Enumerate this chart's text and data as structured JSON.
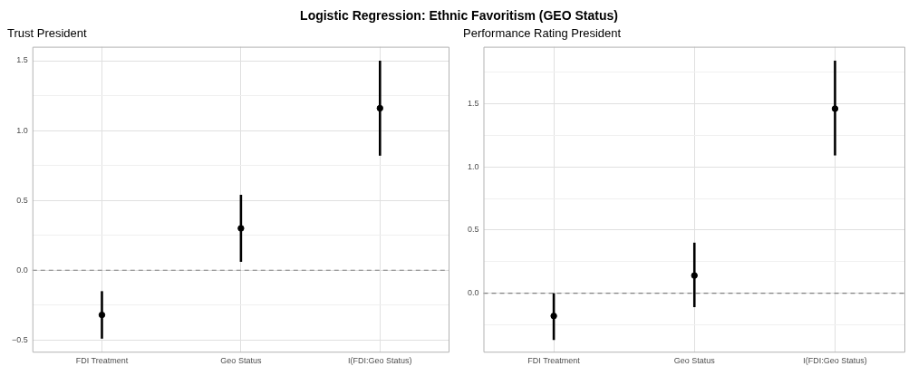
{
  "chart_data": [
    {
      "type": "scatter",
      "title": "Logistic Regression: Ethnic Favoritism (GEO Status)",
      "subtitle": "Trust President",
      "categories": [
        "FDI Treatment",
        "Geo Status",
        "I(FDI:Geo Status)"
      ],
      "series": [
        {
          "color": "#000000",
          "values": [
            -0.32,
            0.3,
            1.16
          ],
          "errors": [
            [
              -0.49,
              -0.15
            ],
            [
              0.06,
              0.54
            ],
            [
              0.82,
              1.5
            ]
          ]
        }
      ],
      "ylim": [
        -0.59,
        1.6
      ],
      "yticks": [
        {
          "value": -0.5,
          "label": "−0.5"
        },
        {
          "value": -0.25,
          "label": null
        },
        {
          "value": 0,
          "label": "0.0"
        },
        {
          "value": 0.25,
          "label": null
        },
        {
          "value": 0.5,
          "label": "0.5"
        },
        {
          "value": 0.75,
          "label": null
        },
        {
          "value": 1,
          "label": "1.0"
        },
        {
          "value": 1.25,
          "label": null
        },
        {
          "value": 1.5,
          "label": "1.5"
        }
      ],
      "ref_lines": [
        {
          "axis": "y",
          "value": 0,
          "color": "#808080",
          "line_style": "dashed"
        }
      ],
      "grid": true,
      "marker": "circle",
      "legend": false
    },
    {
      "type": "scatter",
      "subtitle": "Performance Rating President",
      "categories": [
        "FDI Treatment",
        "Geo Status",
        "I(FDI:Geo Status)"
      ],
      "series": [
        {
          "color": "#000000",
          "values": [
            -0.18,
            0.14,
            1.46
          ],
          "errors": [
            [
              -0.37,
              0
            ],
            [
              -0.11,
              0.4
            ],
            [
              1.09,
              1.84
            ]
          ]
        }
      ],
      "ylim": [
        -0.47,
        1.95
      ],
      "yticks": [
        {
          "value": -0.25,
          "label": null
        },
        {
          "value": 0,
          "label": "0.0"
        },
        {
          "value": 0.25,
          "label": null
        },
        {
          "value": 0.5,
          "label": "0.5"
        },
        {
          "value": 0.75,
          "label": null
        },
        {
          "value": 1,
          "label": "1.0"
        },
        {
          "value": 1.25,
          "label": null
        },
        {
          "value": 1.5,
          "label": "1.5"
        },
        {
          "value": 1.75,
          "label": null
        }
      ],
      "ref_lines": [
        {
          "axis": "y",
          "value": 0,
          "color": "#808080",
          "line_style": "dashed"
        }
      ],
      "grid": true,
      "marker": "circle",
      "legend": false
    }
  ]
}
